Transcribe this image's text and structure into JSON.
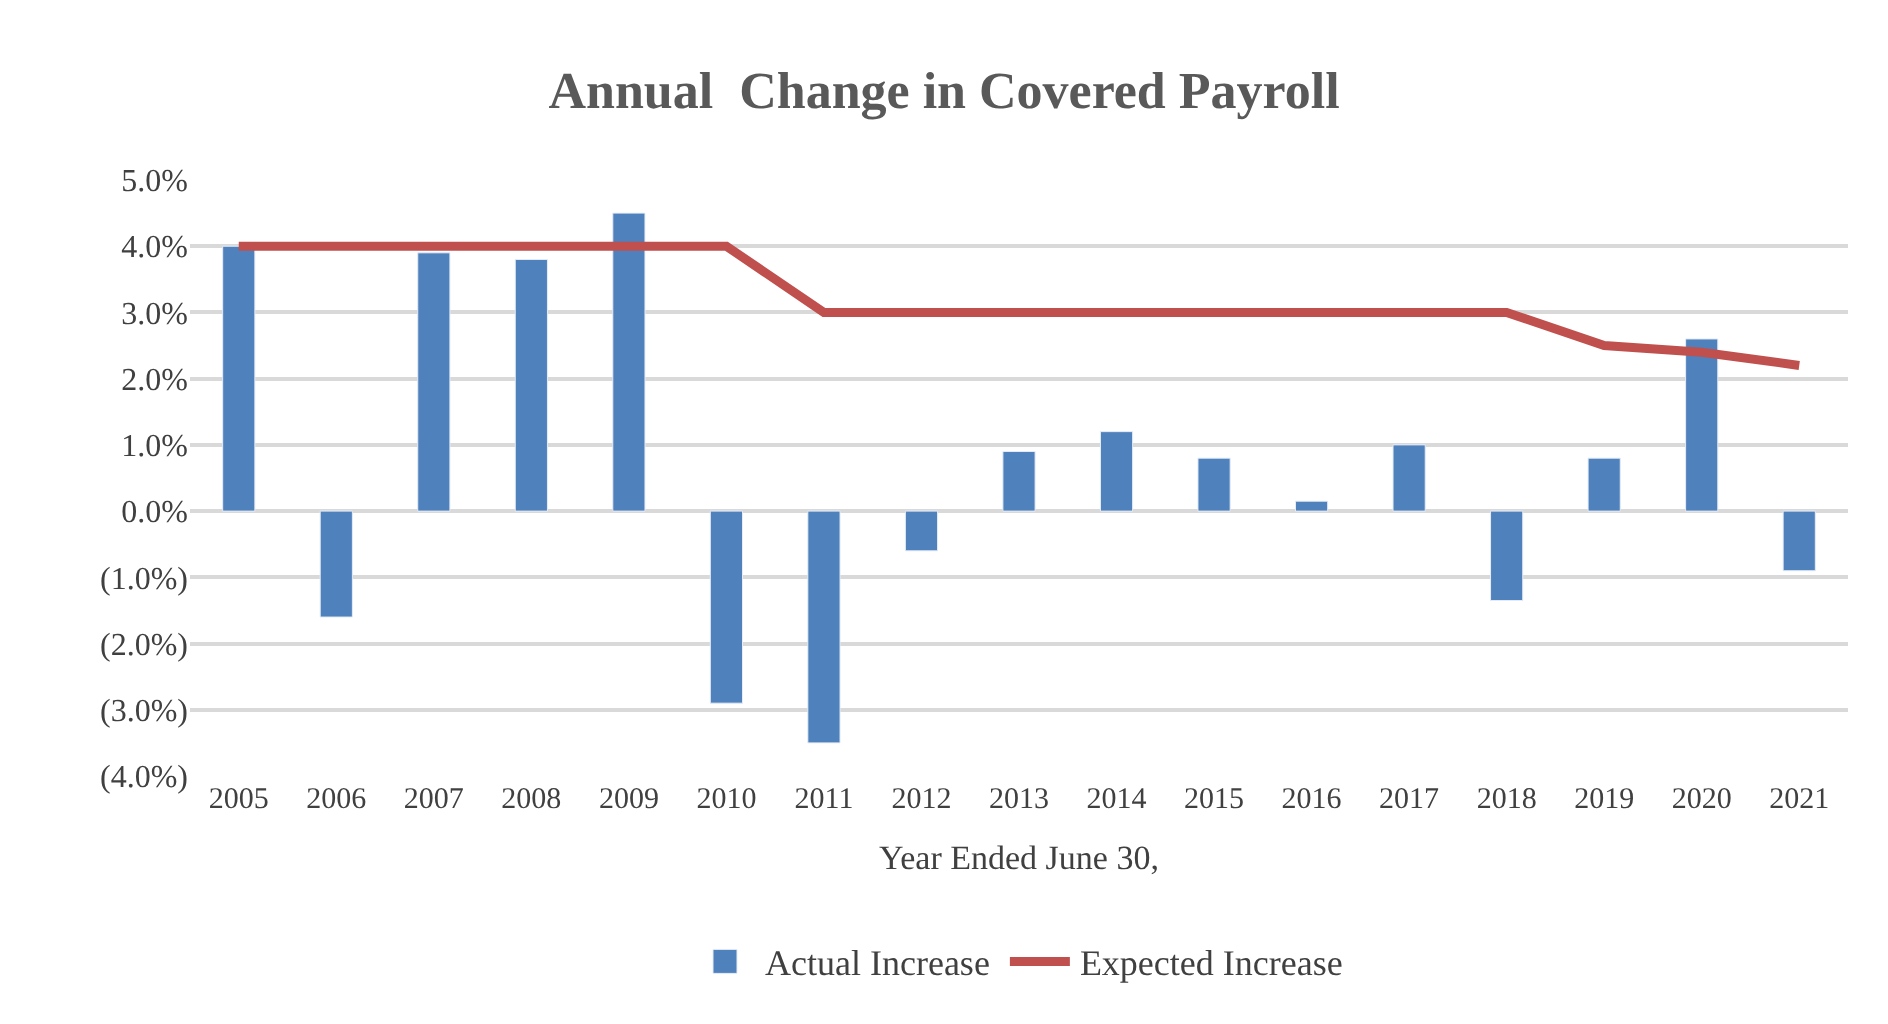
{
  "chart_data": {
    "type": "bar",
    "title": "Annual  Change in Covered Payroll",
    "xlabel": "Year Ended June 30,",
    "categories": [
      "2005",
      "2006",
      "2007",
      "2008",
      "2009",
      "2010",
      "2011",
      "2012",
      "2013",
      "2014",
      "2015",
      "2016",
      "2017",
      "2018",
      "2019",
      "2020",
      "2021"
    ],
    "series": [
      {
        "name": "Actual Increase",
        "color": "#4f81bd",
        "values": [
          4.0,
          -1.6,
          3.9,
          3.8,
          4.5,
          -2.9,
          -3.5,
          -0.6,
          0.9,
          1.2,
          0.8,
          0.15,
          1.0,
          -1.35,
          0.8,
          2.6,
          -0.9
        ]
      },
      {
        "name": "Expected Increase",
        "type": "line",
        "color": "#c0504d",
        "marker": "none",
        "line_style": "solid",
        "values": [
          4,
          4,
          4,
          4,
          4,
          4,
          3,
          3,
          3,
          3,
          3,
          3,
          3,
          3,
          2.5,
          2.4,
          2.2
        ]
      }
    ],
    "ylim": [
      -4,
      5
    ],
    "yticks": [
      {
        "value": -4,
        "label": "(4.0%)"
      },
      {
        "value": -3,
        "label": "(3.0%)"
      },
      {
        "value": -2,
        "label": "(2.0%)"
      },
      {
        "value": -1,
        "label": "(1.0%)"
      },
      {
        "value": 0,
        "label": "0.0%"
      },
      {
        "value": 1,
        "label": "1.0%"
      },
      {
        "value": 2,
        "label": "2.0%"
      },
      {
        "value": 3,
        "label": "3.0%"
      },
      {
        "value": 4,
        "label": "4.0%"
      },
      {
        "value": 5,
        "label": "5.0%"
      }
    ],
    "grid": "y",
    "legend": "bottom"
  }
}
